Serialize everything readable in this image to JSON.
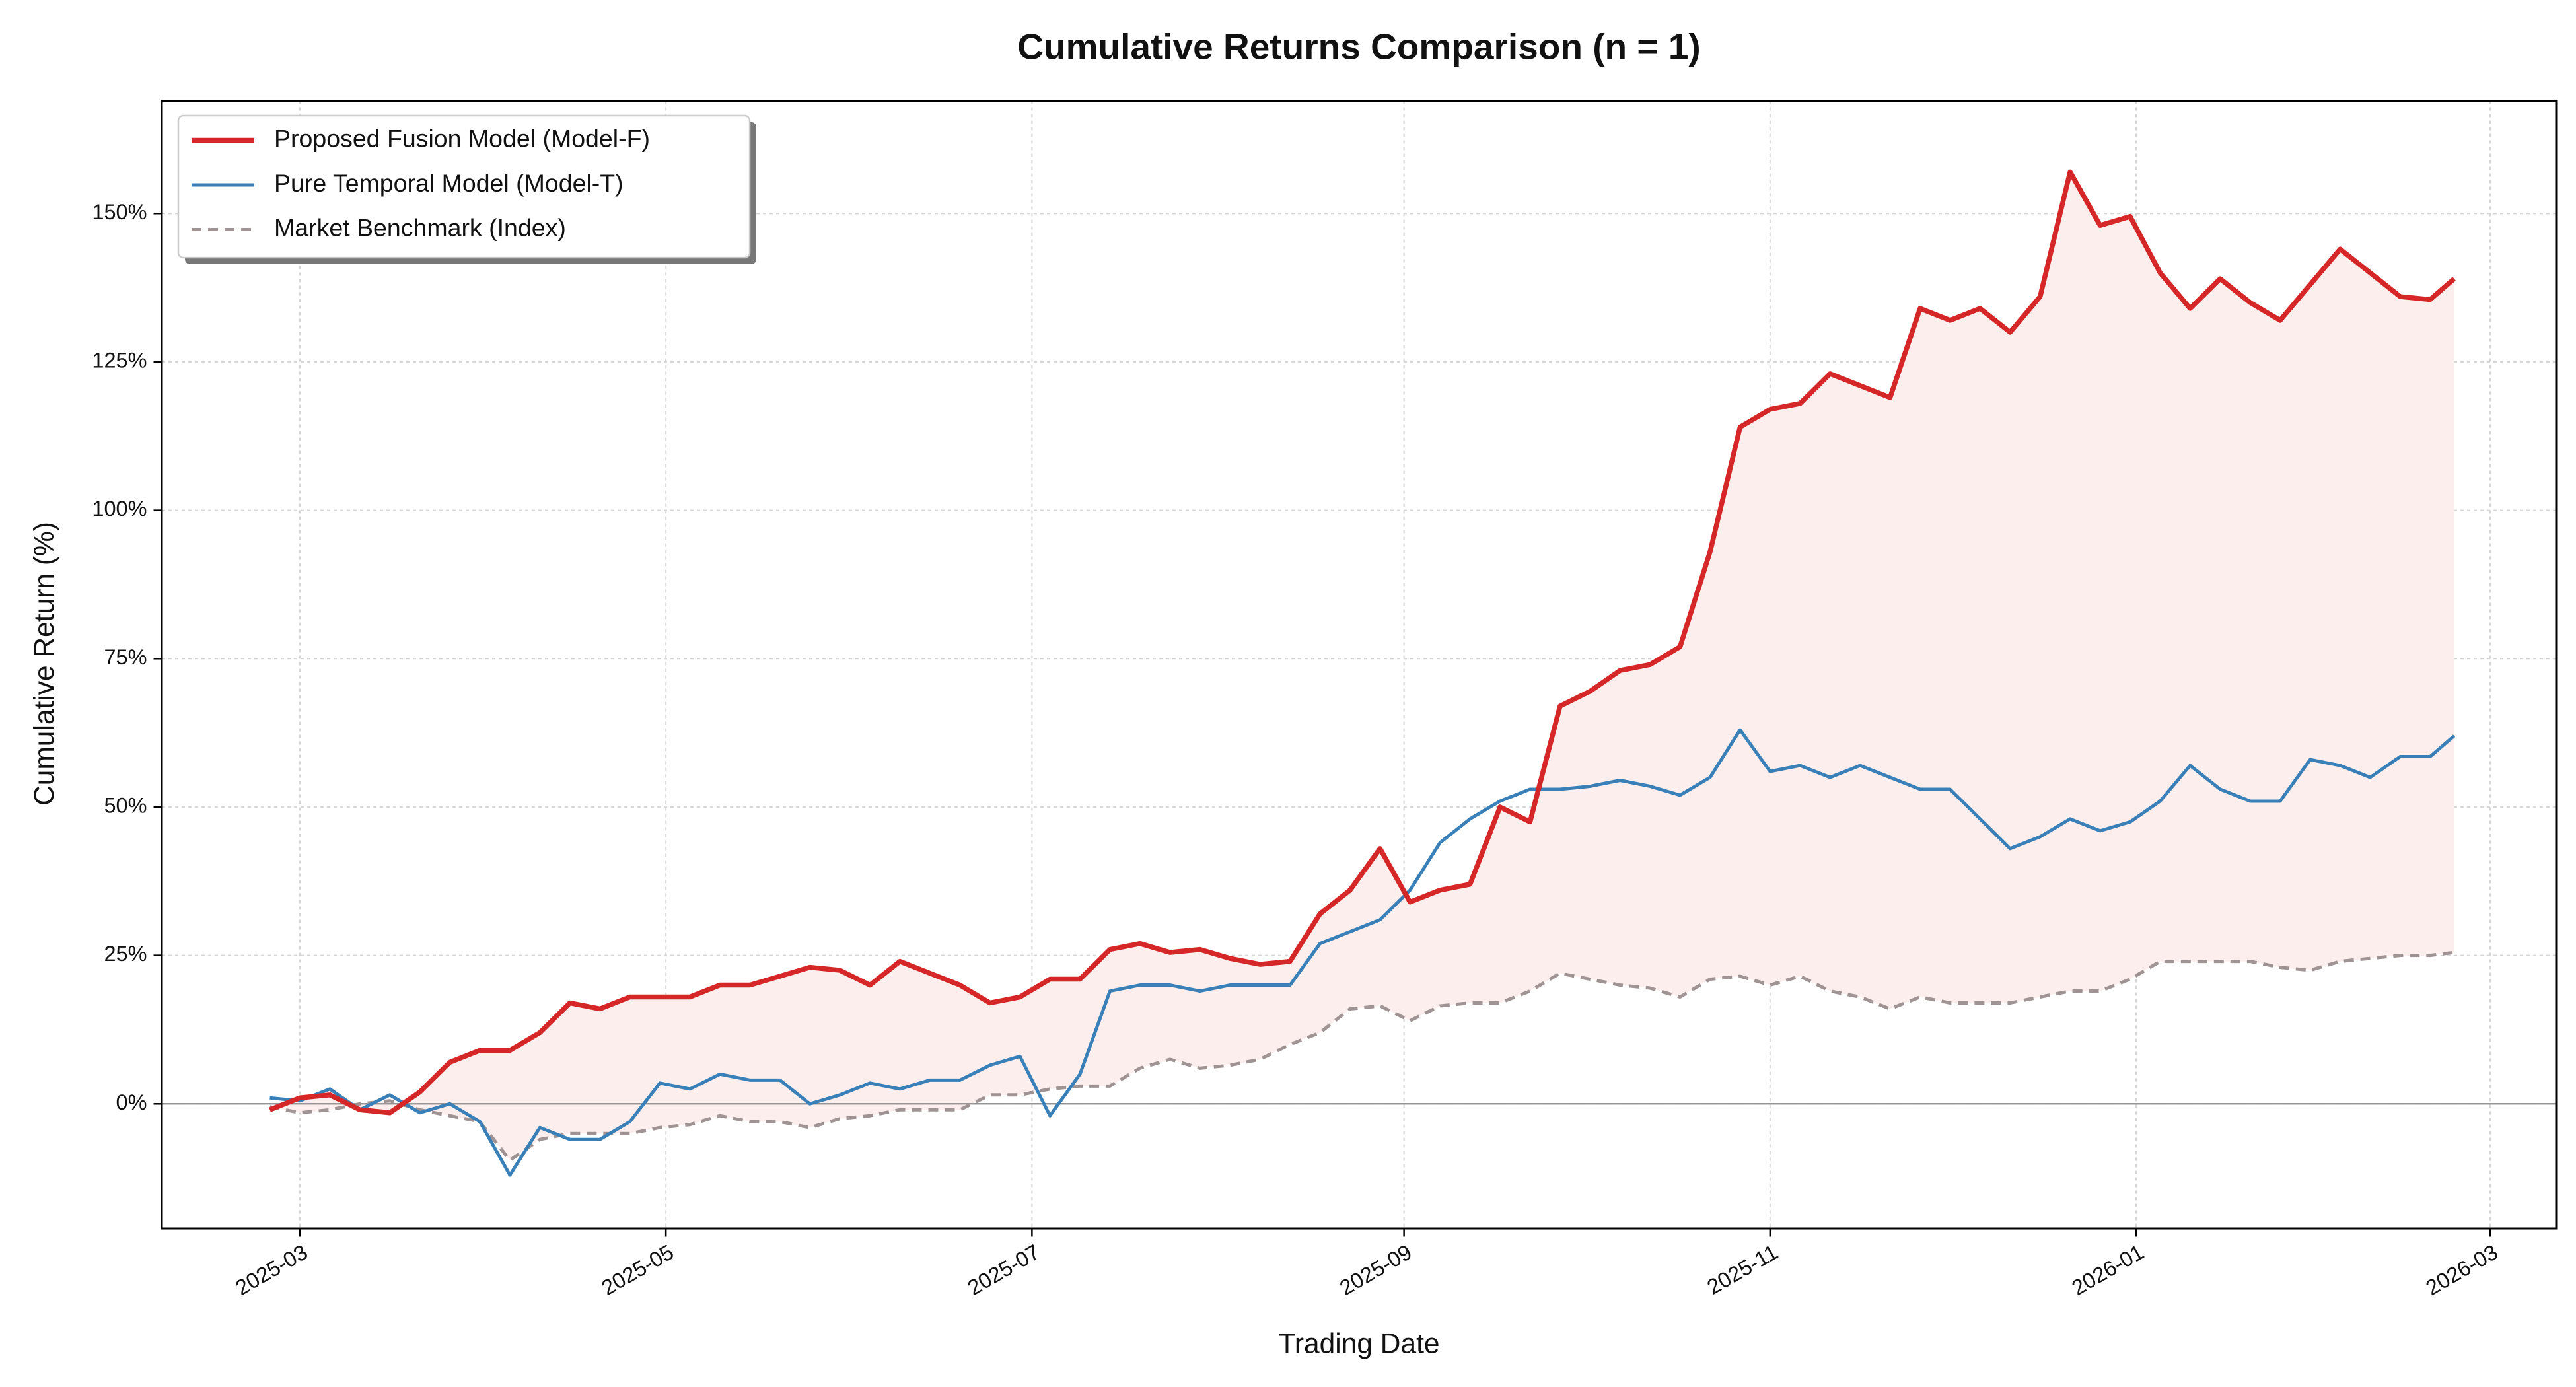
{
  "chart_data": {
    "type": "line",
    "title": "Cumulative Returns Comparison (n = 1)",
    "x_label": "Trading Date",
    "y_label": "Cumulative Return (%)",
    "x": [
      -5,
      0,
      5,
      10,
      15,
      20,
      25,
      30,
      35,
      40,
      45,
      50,
      55,
      60,
      65,
      70,
      75,
      80,
      85,
      90,
      95,
      100,
      105,
      110,
      115,
      120,
      125,
      130,
      135,
      140,
      145,
      150,
      155,
      160,
      165,
      170,
      175,
      180,
      185,
      190,
      195,
      200,
      205,
      210,
      215,
      220,
      225,
      230,
      235,
      240,
      245,
      250,
      255,
      260,
      265,
      270,
      275,
      280,
      285,
      290,
      295,
      300,
      305,
      310,
      315,
      320,
      325,
      330,
      335,
      340,
      345,
      350,
      355,
      359
    ],
    "series": [
      {
        "name": "Proposed Fusion Model (Model-F)",
        "color": "#d62728",
        "values": [
          -1,
          1,
          1.5,
          -1,
          -1.5,
          2,
          7,
          9,
          9,
          12,
          17,
          16,
          18,
          18,
          18,
          20,
          20,
          21.5,
          23,
          22.5,
          20,
          24,
          22,
          20,
          17,
          18,
          21,
          21,
          26,
          27,
          25.5,
          26,
          24.5,
          23.5,
          24,
          32,
          36,
          43,
          34,
          36,
          37,
          50,
          47.5,
          67,
          69.5,
          73,
          74,
          77,
          93,
          114,
          117,
          118,
          123,
          121,
          119,
          134,
          132,
          134,
          130,
          136,
          157,
          148,
          149.5,
          140,
          134,
          139,
          135,
          132,
          138,
          144,
          140,
          136,
          135.5,
          139
        ]
      },
      {
        "name": "Pure Temporal Model (Model-T)",
        "color": "#3a80b8",
        "values": [
          1,
          0.5,
          2.5,
          -1,
          1.5,
          -1.5,
          0,
          -3,
          -12,
          -4,
          -6,
          -6,
          -3,
          3.5,
          2.5,
          5,
          4,
          4,
          0,
          1.5,
          3.5,
          2.5,
          4,
          4,
          6.5,
          8,
          -2,
          5,
          19,
          20,
          20,
          19,
          20,
          20,
          20,
          27,
          29,
          31,
          36,
          44,
          48,
          51,
          53,
          53,
          53.5,
          54.5,
          53.5,
          52,
          55,
          63,
          56,
          57,
          55,
          57,
          55,
          53,
          53,
          48,
          43,
          45,
          48,
          46,
          47.5,
          51,
          57,
          53,
          51,
          51,
          58,
          57,
          55,
          58.5,
          58.5,
          62
        ]
      },
      {
        "name": "Market Benchmark (Index)",
        "color": "#a09393",
        "dashed": true,
        "values": [
          -0.5,
          -1.5,
          -1,
          0,
          0.5,
          -1,
          -2,
          -3,
          -9.5,
          -6,
          -5,
          -5,
          -5,
          -4,
          -3.5,
          -2,
          -3,
          -3,
          -4,
          -2.5,
          -2,
          -1,
          -1,
          -1,
          1.5,
          1.5,
          2.5,
          3,
          3,
          6,
          7.5,
          6,
          6.5,
          7.5,
          10,
          12,
          16,
          16.5,
          14,
          16.5,
          17,
          17,
          19,
          22,
          21,
          20,
          19.5,
          18,
          21,
          21.5,
          20,
          21.5,
          19,
          18,
          16,
          18,
          17,
          17,
          17,
          18,
          19,
          19,
          21,
          24,
          24,
          24,
          24,
          23,
          22.5,
          24,
          24.5,
          25,
          25,
          25.5
        ]
      }
    ],
    "fill_color": "#fdeeee",
    "xlim": [
      -23,
      376
    ],
    "xticks": [
      {
        "value": 0,
        "label": "2025-03"
      },
      {
        "value": 61,
        "label": "2025-05"
      },
      {
        "value": 122,
        "label": "2025-07"
      },
      {
        "value": 184,
        "label": "2025-09"
      },
      {
        "value": 245,
        "label": "2025-11"
      },
      {
        "value": 306,
        "label": "2026-01"
      },
      {
        "value": 365,
        "label": "2026-03"
      }
    ],
    "ylim": [
      -21,
      169
    ],
    "yticks": [
      {
        "value": 0,
        "label": "0%"
      },
      {
        "value": 25,
        "label": "25%"
      },
      {
        "value": 50,
        "label": "50%"
      },
      {
        "value": 75,
        "label": "75%"
      },
      {
        "value": 100,
        "label": "100%"
      },
      {
        "value": 125,
        "label": "125%"
      },
      {
        "value": 150,
        "label": "150%"
      }
    ],
    "grid": true,
    "legend": "upper-left"
  }
}
